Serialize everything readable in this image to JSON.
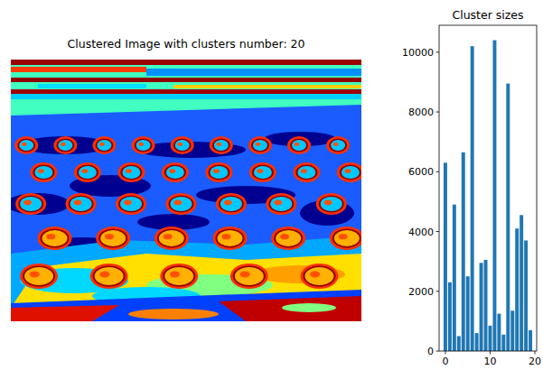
{
  "chart_data": [
    {
      "type": "image",
      "title": "Clustered Image with clusters number: 20",
      "tick_labels": false
    },
    {
      "type": "bar",
      "title": "Cluster sizes",
      "x": [
        0,
        1,
        2,
        3,
        4,
        5,
        6,
        7,
        8,
        9,
        10,
        11,
        12,
        13,
        14,
        15,
        16,
        17,
        18,
        19
      ],
      "values": [
        6300,
        2300,
        4900,
        500,
        6650,
        2500,
        10200,
        600,
        2950,
        3050,
        850,
        10400,
        1250,
        550,
        8950,
        1350,
        4100,
        4550,
        3700,
        700
      ],
      "color": "#1f77b4",
      "xlim": [
        -1.4,
        20.4
      ],
      "xticks": [
        0,
        10,
        20
      ],
      "ylim": [
        0,
        10900
      ],
      "yticks": [
        0,
        2000,
        4000,
        6000,
        8000,
        10000
      ],
      "grid": false
    }
  ]
}
